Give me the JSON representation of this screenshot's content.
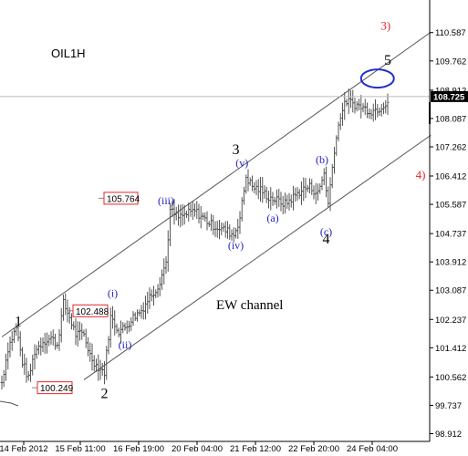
{
  "symbol": "OIL1H",
  "colors": {
    "bars": "#555555",
    "channel": "#555555",
    "axis": "#000000",
    "wave_blue": "#1f1fbf",
    "wave_red": "#e8242a",
    "ellipse": "#1f2fd0",
    "price_box_border": "#e8242a",
    "current_price_bg": "#000000",
    "current_price_fg": "#ffffff"
  },
  "price_axis": {
    "ticks": [
      "110.587",
      "109.762",
      "108.912",
      "108.087",
      "107.262",
      "106.412",
      "105.587",
      "104.737",
      "103.912",
      "103.087",
      "102.237",
      "101.412",
      "100.562",
      "99.737",
      "98.912"
    ],
    "current_price": "108.725"
  },
  "time_axis": {
    "ticks": [
      "14 Feb 2012",
      "15 Feb 11:00",
      "16 Feb 19:00",
      "20 Feb 04:00",
      "21 Feb 12:00",
      "22 Feb 20:00",
      "24 Feb 04:00"
    ]
  },
  "price_boxes": [
    {
      "label": "105.764",
      "price": 105.764
    },
    {
      "label": "102.488",
      "price": 102.488
    },
    {
      "label": "100.249",
      "price": 100.249
    }
  ],
  "wave_labels": {
    "black": [
      {
        "label": "1",
        "bar": 8,
        "price": 102.2
      },
      {
        "label": "2",
        "bar": 50,
        "price": 100.1
      },
      {
        "label": "3",
        "bar": 114,
        "price": 107.2
      },
      {
        "label": "4",
        "bar": 158,
        "price": 104.6
      },
      {
        "label": "5",
        "bar": 188,
        "price": 109.8
      }
    ],
    "blue": [
      {
        "label": "(i)",
        "bar": 54,
        "price": 103.0
      },
      {
        "label": "(ii)",
        "bar": 60,
        "price": 101.5
      },
      {
        "label": "(iii)",
        "bar": 80,
        "price": 105.7
      },
      {
        "label": "(iv)",
        "bar": 114,
        "price": 104.4
      },
      {
        "label": "(v)",
        "bar": 117,
        "price": 106.8
      },
      {
        "label": "(a)",
        "bar": 132,
        "price": 105.2
      },
      {
        "label": "(b)",
        "bar": 156,
        "price": 106.9
      },
      {
        "label": "(c)",
        "bar": 158,
        "price": 104.8
      }
    ],
    "red": [
      {
        "label": "3)",
        "bar": 187,
        "price": 110.8
      },
      {
        "label": "4)",
        "bar": 204,
        "price": 106.45
      }
    ]
  },
  "annotation": "EW channel",
  "chart_data": {
    "type": "line",
    "title": "OIL1H",
    "xlabel": "",
    "ylabel": "",
    "ylim": [
      98.62,
      111.35
    ],
    "x_ticks": [
      "14 Feb 2012",
      "15 Feb 11:00",
      "16 Feb 19:00",
      "20 Feb 04:00",
      "21 Feb 12:00",
      "22 Feb 20:00",
      "24 Feb 04:00"
    ],
    "series": [
      {
        "values": [
          [
            0,
            100.4
          ],
          [
            3,
            101.4
          ],
          [
            7,
            102.0
          ],
          [
            10,
            101.0
          ],
          [
            13,
            100.5
          ],
          [
            16,
            101.3
          ],
          [
            20,
            101.6
          ],
          [
            24,
            101.7
          ],
          [
            27,
            101.5
          ],
          [
            30,
            102.7
          ],
          [
            33,
            102.3
          ],
          [
            36,
            101.8
          ],
          [
            40,
            101.8
          ],
          [
            43,
            101.2
          ],
          [
            46,
            100.9
          ],
          [
            50,
            100.7
          ],
          [
            53,
            102.3
          ],
          [
            57,
            101.9
          ],
          [
            60,
            102.0
          ],
          [
            64,
            102.3
          ],
          [
            68,
            102.5
          ],
          [
            72,
            102.9
          ],
          [
            76,
            103.2
          ],
          [
            80,
            103.9
          ],
          [
            82,
            105.4
          ],
          [
            86,
            105.2
          ],
          [
            90,
            105.3
          ],
          [
            94,
            105.4
          ],
          [
            98,
            105.2
          ],
          [
            102,
            105.0
          ],
          [
            106,
            104.9
          ],
          [
            110,
            104.8
          ],
          [
            113,
            104.7
          ],
          [
            116,
            105.2
          ],
          [
            119,
            106.4
          ],
          [
            122,
            106.1
          ],
          [
            126,
            106.0
          ],
          [
            130,
            105.8
          ],
          [
            134,
            105.7
          ],
          [
            138,
            105.6
          ],
          [
            142,
            105.8
          ],
          [
            146,
            106.0
          ],
          [
            150,
            106.1
          ],
          [
            154,
            105.9
          ],
          [
            157,
            106.5
          ],
          [
            159,
            105.6
          ],
          [
            162,
            107.2
          ],
          [
            165,
            108.2
          ],
          [
            168,
            108.6
          ],
          [
            172,
            108.5
          ],
          [
            176,
            108.4
          ],
          [
            180,
            108.3
          ],
          [
            184,
            108.4
          ],
          [
            188,
            108.6
          ]
        ]
      }
    ],
    "channel_lines": [
      {
        "from": [
          0,
          101.73
        ],
        "to": [
          209,
          110.6
        ]
      },
      {
        "from": [
          40,
          100.48
        ],
        "to": [
          209,
          107.6
        ]
      }
    ],
    "grid": false
  }
}
